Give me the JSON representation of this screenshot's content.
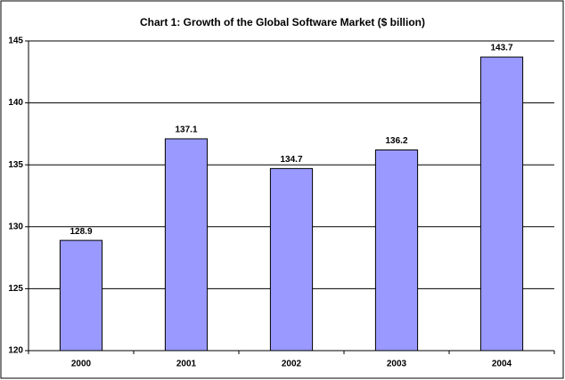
{
  "chart_data": {
    "type": "bar",
    "title": "Chart 1: Growth of the Global Software Market ($ billion)",
    "categories": [
      "2000",
      "2001",
      "2002",
      "2003",
      "2004"
    ],
    "values": [
      128.9,
      137.1,
      134.7,
      136.2,
      143.7
    ],
    "color": "#9999ff",
    "ylim": [
      120,
      145
    ],
    "yticks": [
      120,
      125,
      130,
      135,
      140,
      145
    ],
    "grid": true
  }
}
